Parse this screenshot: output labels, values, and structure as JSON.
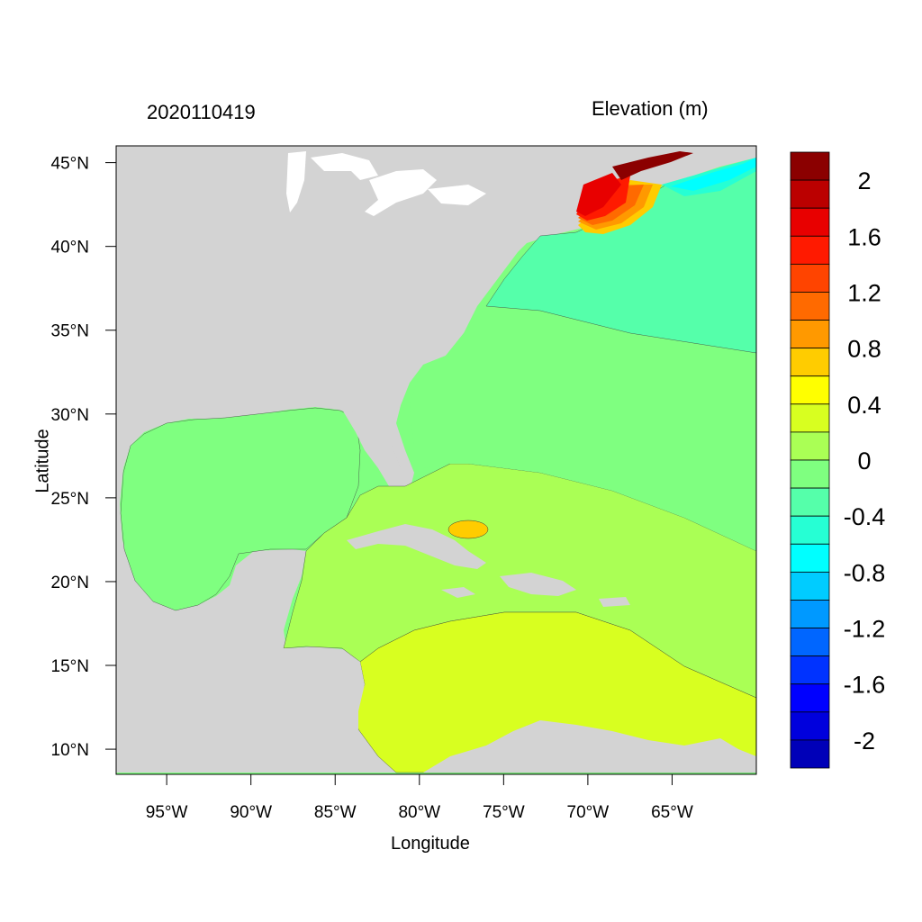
{
  "header": {
    "date_label": "2020110419",
    "variable_label": "Elevation (m)"
  },
  "axes": {
    "xlabel": "Longitude",
    "ylabel": "Latitude",
    "x_ticks": [
      "95°W",
      "90°W",
      "85°W",
      "80°W",
      "75°W",
      "70°W",
      "65°W"
    ],
    "y_ticks": [
      "45°N",
      "40°N",
      "35°N",
      "30°N",
      "25°N",
      "20°N",
      "15°N",
      "10°N"
    ]
  },
  "colorbar": {
    "labels": [
      "2",
      "1.6",
      "1.2",
      "0.8",
      "0.4",
      "0",
      "-0.4",
      "-0.8",
      "-1.2",
      "-1.6",
      "-2"
    ],
    "colors": [
      "#8b0000",
      "#bb0000",
      "#e80000",
      "#ff1a00",
      "#ff4400",
      "#ff6a00",
      "#ff9900",
      "#ffcc00",
      "#ffff00",
      "#d8ff20",
      "#aaff55",
      "#7fff80",
      "#55ffaa",
      "#26ffd4",
      "#00ffff",
      "#00ccff",
      "#0099ff",
      "#0066ff",
      "#0033ff",
      "#0000ff",
      "#0000dd",
      "#0000b8"
    ]
  },
  "chart_data": {
    "type": "heatmap",
    "variable": "Elevation (m)",
    "time": "2020110419",
    "xlim": [
      -98,
      -60
    ],
    "ylim": [
      8.5,
      46
    ],
    "levels": [
      -2,
      -1.6,
      -1.2,
      -0.8,
      -0.4,
      0,
      0.4,
      0.8,
      1.2,
      1.6,
      2
    ]
  },
  "map": {
    "land_color": "#d3d3d3",
    "water_color": "#ffffff"
  }
}
